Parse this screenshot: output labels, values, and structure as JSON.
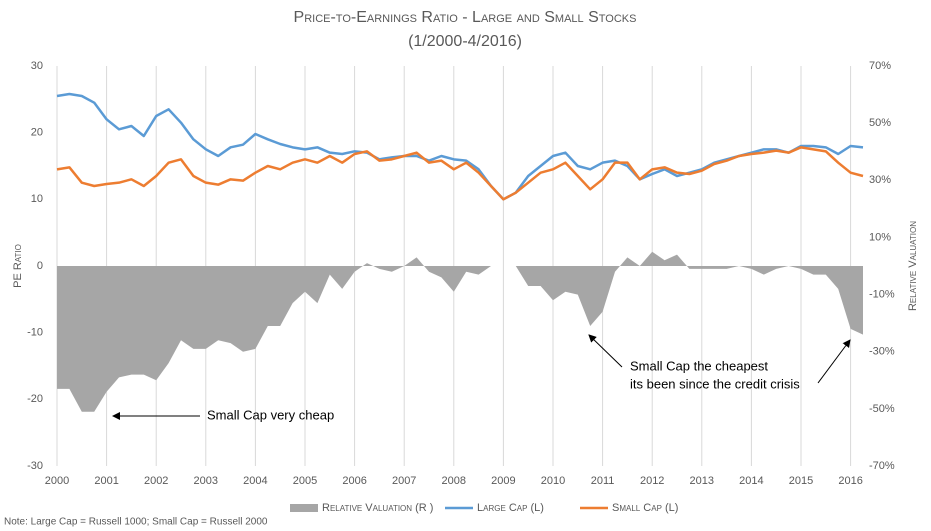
{
  "chart_data": {
    "type": "line",
    "title": "Price-to-Earnings Ratio - Large and Small Stocks",
    "subtitle": "(1/2000-4/2016)",
    "y_label": "PE Ratio",
    "y2_label": "Relative Valuation",
    "note": "Note: Large Cap = Russell 1000; Small Cap = Russell 2000",
    "annotations": [
      {
        "text": "Small Cap very cheap"
      },
      {
        "text": [
          "Small Cap the cheapest",
          "its been since the credit crisis"
        ]
      }
    ],
    "x": [
      2000,
      2000.25,
      2000.5,
      2000.75,
      2001,
      2001.25,
      2001.5,
      2001.75,
      2002,
      2002.25,
      2002.5,
      2002.75,
      2003,
      2003.25,
      2003.5,
      2003.75,
      2004,
      2004.25,
      2004.5,
      2004.75,
      2005,
      2005.25,
      2005.5,
      2005.75,
      2006,
      2006.25,
      2006.5,
      2006.75,
      2007,
      2007.25,
      2007.5,
      2007.75,
      2008,
      2008.25,
      2008.5,
      2008.75,
      2009,
      2009.25,
      2009.5,
      2009.75,
      2010,
      2010.25,
      2010.5,
      2010.75,
      2011,
      2011.25,
      2011.5,
      2011.75,
      2012,
      2012.25,
      2012.5,
      2012.75,
      2013,
      2013.25,
      2013.5,
      2013.75,
      2014,
      2014.25,
      2014.5,
      2014.75,
      2015,
      2015.25,
      2015.5,
      2015.75,
      2016,
      2016.25
    ],
    "xlim": [
      2000,
      2016.25
    ],
    "xticks": [
      2000,
      2001,
      2002,
      2003,
      2004,
      2005,
      2006,
      2007,
      2008,
      2009,
      2010,
      2011,
      2012,
      2013,
      2014,
      2015,
      2016
    ],
    "ylim": [
      -30,
      30
    ],
    "yticks": [
      30,
      20,
      10,
      0,
      -10,
      -20,
      -30
    ],
    "y2lim": [
      -70,
      70
    ],
    "y2ticks": [
      {
        "value": 70,
        "label": "70%"
      },
      {
        "value": 50,
        "label": "50%"
      },
      {
        "value": 30,
        "label": "30%"
      },
      {
        "value": 10,
        "label": "10%"
      },
      {
        "value": -10,
        "label": "-10%"
      },
      {
        "value": -30,
        "label": "-30%"
      },
      {
        "value": -50,
        "label": "-50%"
      },
      {
        "value": -70,
        "label": "-70%"
      }
    ],
    "grid": true,
    "legend": "bottom",
    "series": [
      {
        "name": "Relative Valuation (R )",
        "type": "area",
        "axis": "y2",
        "color": "#a6a6a6",
        "values": [
          -43,
          -43,
          -51,
          -51,
          -44,
          -39,
          -38,
          -38,
          -40,
          -34,
          -26,
          -29,
          -29,
          -26,
          -27,
          -30,
          -29,
          -21,
          -21,
          -13,
          -9,
          -13,
          -3,
          -8,
          -2,
          1,
          -1,
          -2,
          0,
          3,
          -2,
          -4,
          -9,
          -2,
          -3,
          0,
          0,
          0,
          -7,
          -7,
          -12,
          -9,
          -10,
          -21,
          -16,
          -2,
          3,
          0,
          5,
          2,
          4,
          -1,
          -1,
          -1,
          -1,
          0,
          -1,
          -3,
          -1,
          0,
          -1,
          -3,
          -3,
          -8,
          -22,
          -24
        ]
      },
      {
        "name": "Large Cap (L)",
        "color": "#5b9bd5",
        "values": [
          25.5,
          25.8,
          25.5,
          24.5,
          22,
          20.5,
          21,
          19.5,
          22.5,
          23.5,
          21.5,
          19,
          17.5,
          16.5,
          17.8,
          18.2,
          19.8,
          19,
          18.3,
          17.8,
          17.5,
          17.8,
          17,
          16.8,
          17.2,
          17,
          16,
          16.3,
          16.5,
          16.5,
          15.8,
          16.5,
          16,
          15.8,
          14.5,
          12,
          10,
          11,
          13.5,
          15,
          16.5,
          17,
          15,
          14.5,
          15.5,
          15.8,
          15,
          13,
          13.8,
          14.5,
          13.5,
          14,
          14.5,
          15.5,
          16,
          16.5,
          17,
          17.5,
          17.5,
          17,
          18,
          18,
          17.8,
          16.8,
          18,
          17.8
        ]
      },
      {
        "name": "Small Cap (L)",
        "color": "#ed7d31",
        "values": [
          14.5,
          14.8,
          12.5,
          12,
          12.3,
          12.5,
          13,
          12,
          13.5,
          15.5,
          16,
          13.5,
          12.5,
          12.2,
          13,
          12.8,
          14,
          15,
          14.5,
          15.5,
          16,
          15.5,
          16.5,
          15.5,
          16.8,
          17.2,
          15.8,
          16,
          16.5,
          17,
          15.5,
          15.8,
          14.5,
          15.5,
          14,
          12,
          10,
          11,
          12.5,
          14,
          14.5,
          15.5,
          13.5,
          11.5,
          13,
          15.5,
          15.5,
          13,
          14.5,
          14.8,
          14,
          13.8,
          14.3,
          15.3,
          15.8,
          16.5,
          16.8,
          17,
          17.3,
          17,
          17.8,
          17.5,
          17.2,
          15.5,
          14,
          13.5
        ]
      }
    ]
  }
}
